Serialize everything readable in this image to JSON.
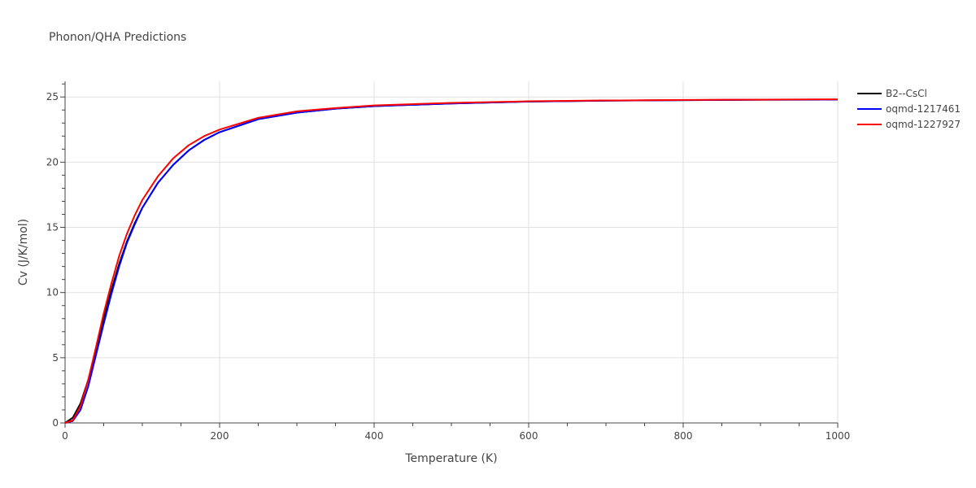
{
  "chart_data": {
    "type": "line",
    "title": "Phonon/QHA Predictions",
    "xlabel": "Temperature (K)",
    "ylabel": "Cv (J/K/mol)",
    "xlim": [
      0,
      1000
    ],
    "ylim": [
      0,
      26.2
    ],
    "x_ticks": [
      0,
      200,
      400,
      600,
      800,
      1000
    ],
    "y_ticks": [
      0,
      5,
      10,
      15,
      20,
      25
    ],
    "x_tick_labels": [
      "0",
      "200",
      "400",
      "600",
      "800",
      "1000"
    ],
    "y_tick_labels": [
      "0",
      "5",
      "10",
      "15",
      "20",
      "25"
    ],
    "grid": true,
    "legend_position": "top-right-outside",
    "series": [
      {
        "name": "B2--CsCl",
        "color": "#000000",
        "x": [
          0,
          10,
          20,
          30,
          40,
          50,
          60,
          70,
          80,
          90,
          100,
          120,
          140,
          160,
          180,
          200,
          250,
          300,
          350,
          400,
          500,
          600,
          700,
          800,
          900,
          1000
        ],
        "y": [
          0,
          0.4,
          1.5,
          3.3,
          5.6,
          8.0,
          10.2,
          12.2,
          13.9,
          15.3,
          16.5,
          18.4,
          19.8,
          20.9,
          21.7,
          22.3,
          23.3,
          23.8,
          24.1,
          24.3,
          24.5,
          24.65,
          24.72,
          24.76,
          24.79,
          24.8
        ]
      },
      {
        "name": "oqmd-1217461",
        "color": "#0000ff",
        "x": [
          0,
          10,
          20,
          30,
          40,
          50,
          60,
          70,
          80,
          90,
          100,
          120,
          140,
          160,
          180,
          200,
          250,
          300,
          350,
          400,
          500,
          600,
          700,
          800,
          900,
          1000
        ],
        "y": [
          0,
          0.15,
          1.0,
          2.8,
          5.2,
          7.6,
          9.9,
          12.0,
          13.8,
          15.2,
          16.5,
          18.4,
          19.8,
          20.9,
          21.7,
          22.3,
          23.3,
          23.8,
          24.1,
          24.3,
          24.5,
          24.65,
          24.72,
          24.76,
          24.79,
          24.8
        ]
      },
      {
        "name": "oqmd-1227927",
        "color": "#ff0000",
        "x": [
          0,
          10,
          20,
          30,
          40,
          50,
          60,
          70,
          80,
          90,
          100,
          120,
          140,
          160,
          180,
          200,
          250,
          300,
          350,
          400,
          500,
          600,
          700,
          800,
          900,
          1000
        ],
        "y": [
          0,
          0.2,
          1.3,
          3.3,
          5.8,
          8.4,
          10.7,
          12.8,
          14.5,
          15.9,
          17.1,
          18.9,
          20.3,
          21.3,
          22.0,
          22.5,
          23.4,
          23.9,
          24.15,
          24.35,
          24.55,
          24.67,
          24.73,
          24.77,
          24.8,
          24.82
        ]
      }
    ]
  }
}
